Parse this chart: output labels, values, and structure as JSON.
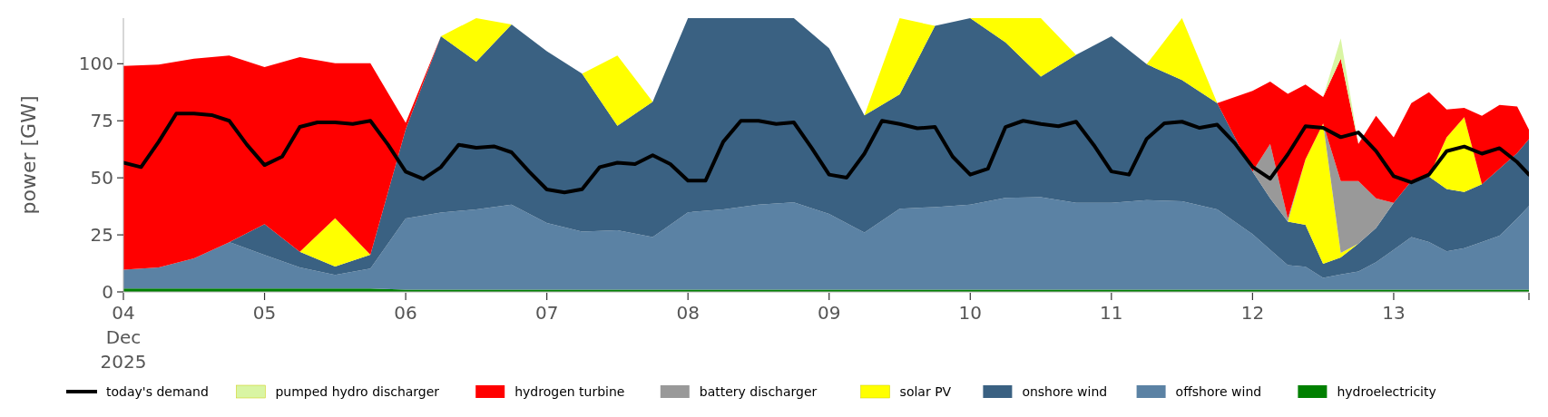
{
  "chart_data": {
    "type": "area",
    "stacked": true,
    "ylabel": "power [GW]",
    "legend": "bottom",
    "x": [
      "2025-12-04T00:00",
      "2025-12-04T06:00",
      "2025-12-04T12:00",
      "2025-12-04T18:00",
      "2025-12-05T00:00",
      "2025-12-05T06:00",
      "2025-12-05T12:00",
      "2025-12-05T18:00",
      "2025-12-06T00:00",
      "2025-12-06T06:00",
      "2025-12-06T12:00",
      "2025-12-06T18:00",
      "2025-12-07T00:00",
      "2025-12-07T06:00",
      "2025-12-07T12:00",
      "2025-12-07T18:00",
      "2025-12-08T00:00",
      "2025-12-08T06:00",
      "2025-12-08T12:00",
      "2025-12-08T18:00",
      "2025-12-09T00:00",
      "2025-12-09T06:00",
      "2025-12-09T12:00",
      "2025-12-09T18:00",
      "2025-12-10T00:00",
      "2025-12-10T06:00",
      "2025-12-10T12:00",
      "2025-12-10T18:00",
      "2025-12-11T00:00",
      "2025-12-11T06:00",
      "2025-12-11T12:00",
      "2025-12-11T18:00",
      "2025-12-12T00:00",
      "2025-12-12T03:00",
      "2025-12-12T06:00",
      "2025-12-12T09:00",
      "2025-12-12T12:00",
      "2025-12-12T15:00",
      "2025-12-12T18:00",
      "2025-12-12T21:00",
      "2025-12-13T00:00",
      "2025-12-13T03:00",
      "2025-12-13T06:00",
      "2025-12-13T09:00",
      "2025-12-13T12:00",
      "2025-12-13T15:00",
      "2025-12-13T18:00",
      "2025-12-13T21:00",
      "2025-12-13T23:00"
    ],
    "xlim": [
      "2025-12-04T00:00",
      "2025-12-13T23:00"
    ],
    "xticks": [
      {
        "value": "2025-12-04",
        "label": "04\nDec\n2025"
      },
      {
        "value": "2025-12-05",
        "label": "05"
      },
      {
        "value": "2025-12-06",
        "label": "06"
      },
      {
        "value": "2025-12-07",
        "label": "07"
      },
      {
        "value": "2025-12-08",
        "label": "08"
      },
      {
        "value": "2025-12-09",
        "label": "09"
      },
      {
        "value": "2025-12-10",
        "label": "10"
      },
      {
        "value": "2025-12-11",
        "label": "11"
      },
      {
        "value": "2025-12-12",
        "label": "12"
      },
      {
        "value": "2025-12-13",
        "label": "13"
      },
      {
        "value": "2025-12-13T23:00",
        "label": null
      }
    ],
    "ylim": [
      0,
      120
    ],
    "yticks": [
      0,
      25,
      50,
      75,
      100
    ],
    "series": [
      {
        "name": "hydroelectricity",
        "color": "#008000",
        "values": [
          1.5,
          1.5,
          1.5,
          1.5,
          1.5,
          1.5,
          1.5,
          1.5,
          1,
          1,
          1,
          1,
          1,
          1,
          1,
          1,
          1,
          1,
          1,
          1,
          1,
          1,
          1,
          1,
          1,
          1,
          1,
          1,
          1,
          1,
          1,
          1,
          1,
          1,
          1,
          1,
          1,
          1,
          1,
          1,
          1,
          1,
          1,
          1,
          1,
          1,
          1,
          1,
          1
        ]
      },
      {
        "name": "offshore wind",
        "color": "#5b82a4",
        "values": [
          8.2,
          9.2,
          13.2,
          20.3,
          14.7,
          9.2,
          6,
          8.7,
          31.2,
          33.8,
          35.2,
          37.2,
          29.2,
          25.4,
          26,
          23,
          33.9,
          35.2,
          37.2,
          38.2,
          33.2,
          25,
          35.5,
          36.2,
          37.2,
          40.2,
          40.5,
          38,
          38,
          39.2,
          38.7,
          35.2,
          24.3,
          17.5,
          10.7,
          10,
          5.2,
          6.6,
          7.9,
          12,
          17.5,
          23,
          20.9,
          16.8,
          18.2,
          20.9,
          23.6,
          31.2,
          36.6
        ]
      },
      {
        "name": "onshore wind",
        "color": "#3a6182",
        "values": [
          null,
          null,
          null,
          0,
          13.5,
          6.9,
          3.6,
          6.1,
          39,
          77.3,
          64.7,
          79,
          75.3,
          69.3,
          45.8,
          59.3,
          85.1,
          83.8,
          81.8,
          80.8,
          72.6,
          51.4,
          50.1,
          79.4,
          81.8,
          68.2,
          52.9,
          64.9,
          73.1,
          59.6,
          53.2,
          46.5,
          27.4,
          22.5,
          19.1,
          18.4,
          6.1,
          7.5,
          12.3,
          15,
          20.5,
          24.6,
          28.7,
          27.3,
          24.6,
          25.3,
          29.4,
          28.7,
          29.4
        ]
      },
      {
        "name": "solar PV",
        "color": "#ffff00",
        "values": [
          null,
          null,
          null,
          null,
          null,
          0,
          21.2,
          0,
          null,
          0,
          19.1,
          0,
          null,
          0,
          30.8,
          0,
          null,
          null,
          null,
          null,
          null,
          0,
          33.4,
          0,
          0,
          10.6,
          25.6,
          0,
          null,
          0,
          27.1,
          0,
          null,
          null,
          0,
          28.7,
          61.5,
          2,
          0,
          null,
          null,
          null,
          0,
          22.6,
          32.8,
          0,
          null,
          null,
          null
        ]
      },
      {
        "name": "battery discharger",
        "color": "#999999",
        "values": [
          null,
          null,
          null,
          null,
          null,
          null,
          null,
          null,
          null,
          null,
          null,
          null,
          null,
          null,
          null,
          null,
          null,
          null,
          null,
          null,
          null,
          null,
          null,
          null,
          null,
          null,
          null,
          null,
          null,
          null,
          null,
          null,
          0,
          23.9,
          1.4,
          0,
          0,
          31.5,
          27.4,
          13,
          0,
          null,
          null,
          null,
          null,
          null,
          null,
          null,
          null
        ]
      },
      {
        "name": "hydrogen turbine",
        "color": "#ff0000",
        "values": [
          89.3,
          88.9,
          87.5,
          81.8,
          68.8,
          85.3,
          67.9,
          83.9,
          2.9,
          0,
          null,
          null,
          null,
          null,
          null,
          null,
          null,
          null,
          null,
          null,
          null,
          null,
          null,
          null,
          null,
          null,
          null,
          null,
          null,
          null,
          null,
          0,
          35.4,
          27.3,
          54.6,
          32.8,
          11.6,
          53.6,
          16.3,
          36.2,
          28.7,
          34.1,
          36.9,
          12.3,
          4.1,
          30,
          28,
          20.4,
          4.1
        ]
      },
      {
        "name": "pumped hydro discharger",
        "color": "#d9f5a3",
        "values": [
          null,
          null,
          null,
          null,
          null,
          null,
          null,
          null,
          null,
          null,
          null,
          null,
          null,
          null,
          null,
          null,
          null,
          null,
          null,
          null,
          null,
          null,
          null,
          null,
          null,
          null,
          null,
          null,
          null,
          null,
          null,
          null,
          null,
          null,
          null,
          null,
          0,
          9,
          0,
          null,
          null,
          null,
          null,
          null,
          null,
          null,
          null,
          null,
          null
        ]
      },
      {
        "name": "today's demand",
        "type": "line",
        "color": "#000000",
        "x": [
          "2025-12-04T00:00",
          "2025-12-04T03:00",
          "2025-12-04T06:00",
          "2025-12-04T09:00",
          "2025-12-04T12:00",
          "2025-12-04T15:00",
          "2025-12-04T18:00",
          "2025-12-04T21:00",
          "2025-12-05T00:00",
          "2025-12-05T03:00",
          "2025-12-05T06:00",
          "2025-12-05T09:00",
          "2025-12-05T12:00",
          "2025-12-05T15:00",
          "2025-12-05T18:00",
          "2025-12-05T21:00",
          "2025-12-06T00:00",
          "2025-12-06T03:00",
          "2025-12-06T06:00",
          "2025-12-06T09:00",
          "2025-12-06T12:00",
          "2025-12-06T15:00",
          "2025-12-06T18:00",
          "2025-12-06T21:00",
          "2025-12-07T00:00",
          "2025-12-07T03:00",
          "2025-12-07T06:00",
          "2025-12-07T09:00",
          "2025-12-07T12:00",
          "2025-12-07T15:00",
          "2025-12-07T18:00",
          "2025-12-07T21:00",
          "2025-12-08T00:00",
          "2025-12-08T03:00",
          "2025-12-08T06:00",
          "2025-12-08T09:00",
          "2025-12-08T12:00",
          "2025-12-08T15:00",
          "2025-12-08T18:00",
          "2025-12-08T21:00",
          "2025-12-09T00:00",
          "2025-12-09T03:00",
          "2025-12-09T06:00",
          "2025-12-09T09:00",
          "2025-12-09T12:00",
          "2025-12-09T15:00",
          "2025-12-09T18:00",
          "2025-12-09T21:00",
          "2025-12-10T00:00",
          "2025-12-10T03:00",
          "2025-12-10T06:00",
          "2025-12-10T09:00",
          "2025-12-10T12:00",
          "2025-12-10T15:00",
          "2025-12-10T18:00",
          "2025-12-10T21:00",
          "2025-12-11T00:00",
          "2025-12-11T03:00",
          "2025-12-11T06:00",
          "2025-12-11T09:00",
          "2025-12-11T12:00",
          "2025-12-11T15:00",
          "2025-12-11T18:00",
          "2025-12-11T21:00",
          "2025-12-12T00:00",
          "2025-12-12T03:00",
          "2025-12-12T06:00",
          "2025-12-12T09:00",
          "2025-12-12T12:00",
          "2025-12-12T15:00",
          "2025-12-12T18:00",
          "2025-12-12T21:00",
          "2025-12-13T00:00",
          "2025-12-13T03:00",
          "2025-12-13T06:00",
          "2025-12-13T09:00",
          "2025-12-13T12:00",
          "2025-12-13T15:00",
          "2025-12-13T18:00",
          "2025-12-13T21:00",
          "2025-12-13T23:00"
        ],
        "values": [
          56.6,
          54.7,
          65.8,
          78.2,
          78.2,
          77.5,
          75,
          64.5,
          55.6,
          59.3,
          72.3,
          74.3,
          74.3,
          73.6,
          75,
          64.5,
          52.7,
          49.5,
          54.7,
          64.5,
          63.2,
          63.8,
          61.2,
          52.7,
          44.9,
          43.6,
          45,
          54.7,
          56.6,
          56,
          59.9,
          56,
          48.8,
          48.8,
          65.8,
          75,
          75,
          73.6,
          74.3,
          63.2,
          51.4,
          50.1,
          60.6,
          75,
          73.6,
          71.7,
          72.3,
          59.3,
          51.4,
          54,
          72.3,
          75,
          73.6,
          72.6,
          74.6,
          64.4,
          52.8,
          51.4,
          67.1,
          73.9,
          74.6,
          71.9,
          73.3,
          65.1,
          54.8,
          49.6,
          60.3,
          72.6,
          71.9,
          67.8,
          69.9,
          61.7,
          50.7,
          48,
          51.4,
          61.7,
          63.7,
          60.6,
          63,
          56.9,
          51.4
        ]
      }
    ]
  }
}
